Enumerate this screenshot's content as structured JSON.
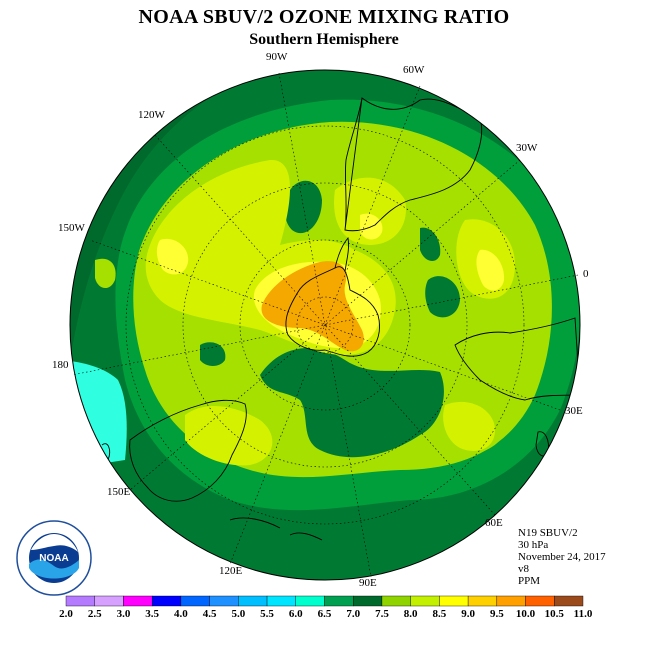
{
  "title": "NOAA SBUV/2 OZONE MIXING RATIO",
  "subtitle": "Southern Hemisphere",
  "longitude_labels": {
    "lon_90w": "90W",
    "lon_60w": "60W",
    "lon_30w": "30W",
    "lon_0": "0",
    "lon_30e": "30E",
    "lon_60e": "60E",
    "lon_90e": "90E",
    "lon_120e": "120E",
    "lon_150e": "150E",
    "lon_180": "180",
    "lon_150w": "150W",
    "lon_120w": "120W"
  },
  "info": {
    "satellite": "N19 SBUV/2",
    "level": "30 hPa",
    "date": "November 24, 2017",
    "version": "v8",
    "units": "PPM"
  },
  "logo": {
    "text": "NOAA",
    "ring_text": "NATIONAL OCEANIC AND ATMOSPHERIC ADMINISTRATION · U.S. DEPARTMENT OF COMMERCE"
  },
  "colorbar": {
    "labels": [
      "2.0",
      "2.5",
      "3.0",
      "3.5",
      "4.0",
      "4.5",
      "5.0",
      "5.5",
      "6.0",
      "6.5",
      "7.0",
      "7.5",
      "8.0",
      "8.5",
      "9.0",
      "9.5",
      "10.0",
      "10.5",
      "11.0"
    ],
    "colors": [
      "#b57bff",
      "#d6a0ff",
      "#ff00ff",
      "#0000ff",
      "#0066ff",
      "#1e90ff",
      "#00bfff",
      "#00e5ff",
      "#00ffcc",
      "#00a050",
      "#006a2c",
      "#8fd400",
      "#c2f000",
      "#ffff00",
      "#ffd000",
      "#ffa000",
      "#ff6000",
      "#ff0000",
      "#9b4a1c"
    ]
  },
  "colors": {
    "dark_green": "#007a33",
    "green": "#009f3c",
    "light_green": "#a5e000",
    "yellow_green": "#d4f200",
    "yellow": "#ffff33",
    "orange": "#f5a800",
    "cyan": "#2fffe0",
    "coast": "#000000",
    "grid": "#000000"
  }
}
